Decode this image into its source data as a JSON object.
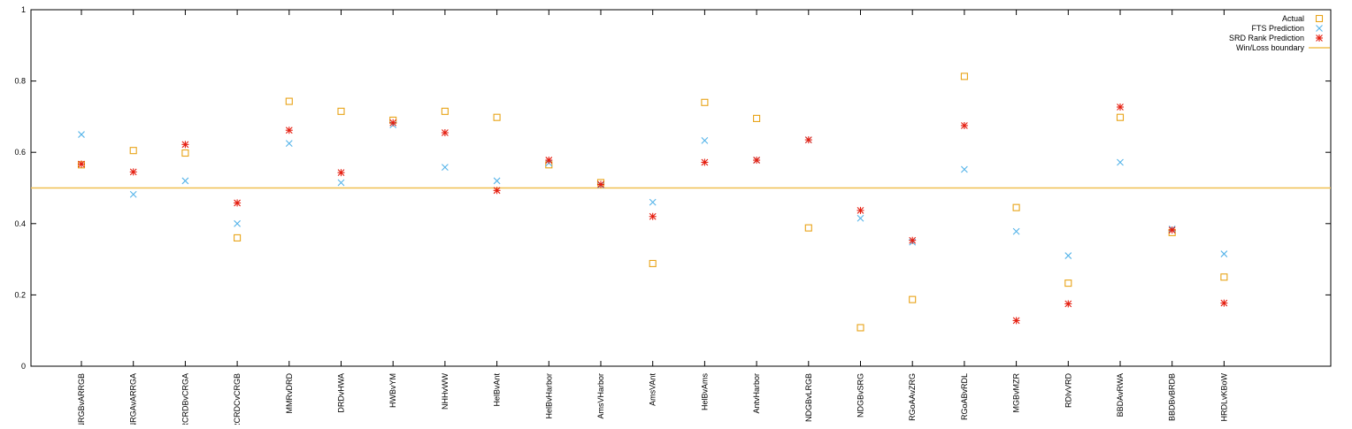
{
  "chart_data": {
    "type": "scatter",
    "title": "",
    "xlabel": "",
    "ylabel": "",
    "ylim": [
      0,
      1
    ],
    "yticks": [
      0,
      0.2,
      0.4,
      0.6,
      0.8,
      1
    ],
    "ytick_labels": [
      "0",
      "0.2",
      "0.4",
      "0.6",
      "0.8",
      "1"
    ],
    "grid": false,
    "legend_position": "top-right",
    "categories": [
      "NRGBvARRGB",
      "NRGAvARRGA",
      "RCRDBvCRGA",
      "RCRDCvCRGB",
      "MMRvDRD",
      "DRDvHWA",
      "HWBvYM",
      "NHHvWW",
      "HelBvAnt",
      "HelBvHarbor",
      "AmsVHarbor",
      "AmsVAnt",
      "HelBvAms",
      "AntvHarbor",
      "NDGBvLRGB",
      "NDGBvSRG",
      "RGoAAvZRG",
      "RGoABvRDL",
      "MGBvMZR",
      "RDIvVRD",
      "BBDAvRWA",
      "BBDBvBRDB",
      "HRDLvKBoW"
    ],
    "series": [
      {
        "name": "Actual",
        "marker": "square",
        "color": "#e8a317",
        "values": [
          0.565,
          0.605,
          0.598,
          0.36,
          0.743,
          0.715,
          0.69,
          0.715,
          0.698,
          0.565,
          0.515,
          0.288,
          0.74,
          0.695,
          0.388,
          0.108,
          0.187,
          0.813,
          0.445,
          0.233,
          0.698,
          0.375,
          0.25
        ]
      },
      {
        "name": "FTS Prediction",
        "marker": "x",
        "color": "#56b4e9",
        "values": [
          0.65,
          0.482,
          0.52,
          0.4,
          0.625,
          0.515,
          0.677,
          0.558,
          0.52,
          0.57,
          0.508,
          0.46,
          0.633,
          0.578,
          0.635,
          0.415,
          0.348,
          0.552,
          0.378,
          0.31,
          0.572,
          0.385,
          0.315
        ]
      },
      {
        "name": "SRD Rank Prediction",
        "marker": "star",
        "color": "#e51e10",
        "values": [
          0.567,
          0.545,
          0.622,
          0.458,
          0.662,
          0.543,
          0.683,
          0.655,
          0.493,
          0.578,
          0.51,
          0.42,
          0.572,
          0.578,
          0.635,
          0.437,
          0.353,
          0.675,
          0.128,
          0.175,
          0.727,
          0.382,
          0.177
        ]
      }
    ],
    "reference_lines": [
      {
        "name": "Win/Loss boundary",
        "y": 0.5,
        "color": "#f0c050"
      }
    ]
  }
}
